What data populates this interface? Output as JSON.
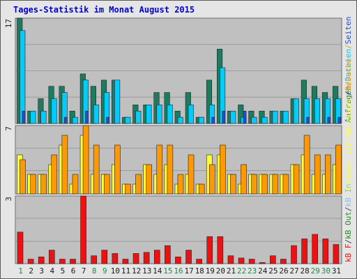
{
  "title": "Tages-Statistik im Monat August 2015",
  "colors": {
    "background": "#e5e5e5",
    "plot_bg": "#c0c0c0",
    "grid": "#9a9a9a",
    "title": "#0000cc",
    "anfragen": "#1e7b5f",
    "dateien": "#00ccff",
    "seiten": "#1f4fd8",
    "rechner": "#ffff33",
    "besuche": "#ff9900",
    "kbin": "#8cbfe8",
    "kbout": "#228b22",
    "kbf": "#ee1111",
    "weekend_label": "#1f8a4a",
    "weekday_label": "#1a1a1a"
  },
  "chart_data": [
    {
      "type": "bar",
      "panel": "hits",
      "ymax_label": "17",
      "ylim": [
        0,
        17
      ],
      "legend": [
        "Anfragen",
        "/",
        "Dateien",
        "/",
        "Seiten"
      ],
      "series": [
        {
          "name": "Anfragen",
          "values": [
            17,
            2,
            4,
            6,
            6,
            2,
            8,
            6,
            7,
            7,
            1,
            3,
            3,
            5,
            5,
            2,
            5,
            1,
            7,
            12,
            2,
            3,
            2,
            2,
            2,
            2,
            4,
            7,
            6,
            5,
            6
          ]
        },
        {
          "name": "Dateien",
          "values": [
            15,
            2,
            2,
            4,
            5,
            1,
            7,
            3,
            5,
            7,
            1,
            2,
            3,
            3,
            3,
            1,
            3,
            1,
            3,
            9,
            2,
            1,
            1,
            1,
            2,
            2,
            4,
            4,
            4,
            4,
            4
          ]
        },
        {
          "name": "Seiten",
          "values": [
            2,
            0,
            0,
            0,
            1,
            0,
            2,
            0,
            1,
            0,
            0,
            0,
            0,
            0,
            0,
            0,
            0,
            0,
            1,
            2,
            0,
            2,
            0,
            0,
            0,
            0,
            0,
            1,
            0,
            1,
            1
          ]
        }
      ]
    },
    {
      "type": "bar",
      "panel": "visits",
      "ymax_label": "7",
      "ylim": [
        0,
        7
      ],
      "legend": [
        "Rechner (IP-Adressen)",
        "/",
        "Besuche"
      ],
      "series": [
        {
          "name": "Rechner (IP-Adressen)",
          "values": [
            4,
            2,
            2,
            3,
            5,
            1,
            6,
            2,
            2,
            3,
            1,
            1,
            3,
            2,
            3,
            1,
            2,
            1,
            4,
            4,
            2,
            1,
            2,
            2,
            2,
            2,
            3,
            4,
            2,
            2,
            3
          ]
        },
        {
          "name": "Besuche",
          "values": [
            3.5,
            2,
            2,
            4,
            6,
            2,
            7,
            5,
            2,
            5,
            1,
            2,
            3,
            5,
            5,
            2,
            4,
            1,
            3,
            5,
            2,
            3,
            2,
            2,
            2,
            2,
            3,
            6,
            4,
            4,
            5
          ]
        }
      ]
    },
    {
      "type": "bar",
      "panel": "traffic",
      "ymax_label": "3",
      "ylim": [
        0,
        3
      ],
      "legend": [
        "kB F",
        "/",
        "kB Out",
        "/",
        "kB In"
      ],
      "series": [
        {
          "name": "kB F",
          "values": [
            1.4,
            0.2,
            0.3,
            0.6,
            0.2,
            0.2,
            3.0,
            0.35,
            0.6,
            0.45,
            0.2,
            0.45,
            0.5,
            0.6,
            0.8,
            0.3,
            0.6,
            0.2,
            1.2,
            1.2,
            0.35,
            0.25,
            0.2,
            0.05,
            0.35,
            0.2,
            0.8,
            1.1,
            1.3,
            1.1,
            0.85
          ]
        }
      ]
    }
  ],
  "x_labels": [
    "1",
    "2",
    "3",
    "4",
    "5",
    "6",
    "7",
    "8",
    "9",
    "10",
    "11",
    "12",
    "13",
    "14",
    "15",
    "16",
    "17",
    "18",
    "19",
    "20",
    "21",
    "22",
    "23",
    "24",
    "25",
    "26",
    "27",
    "28",
    "29",
    "30",
    "31"
  ],
  "weekend_days": [
    1,
    8,
    9,
    15,
    16,
    22,
    23,
    29,
    30
  ]
}
